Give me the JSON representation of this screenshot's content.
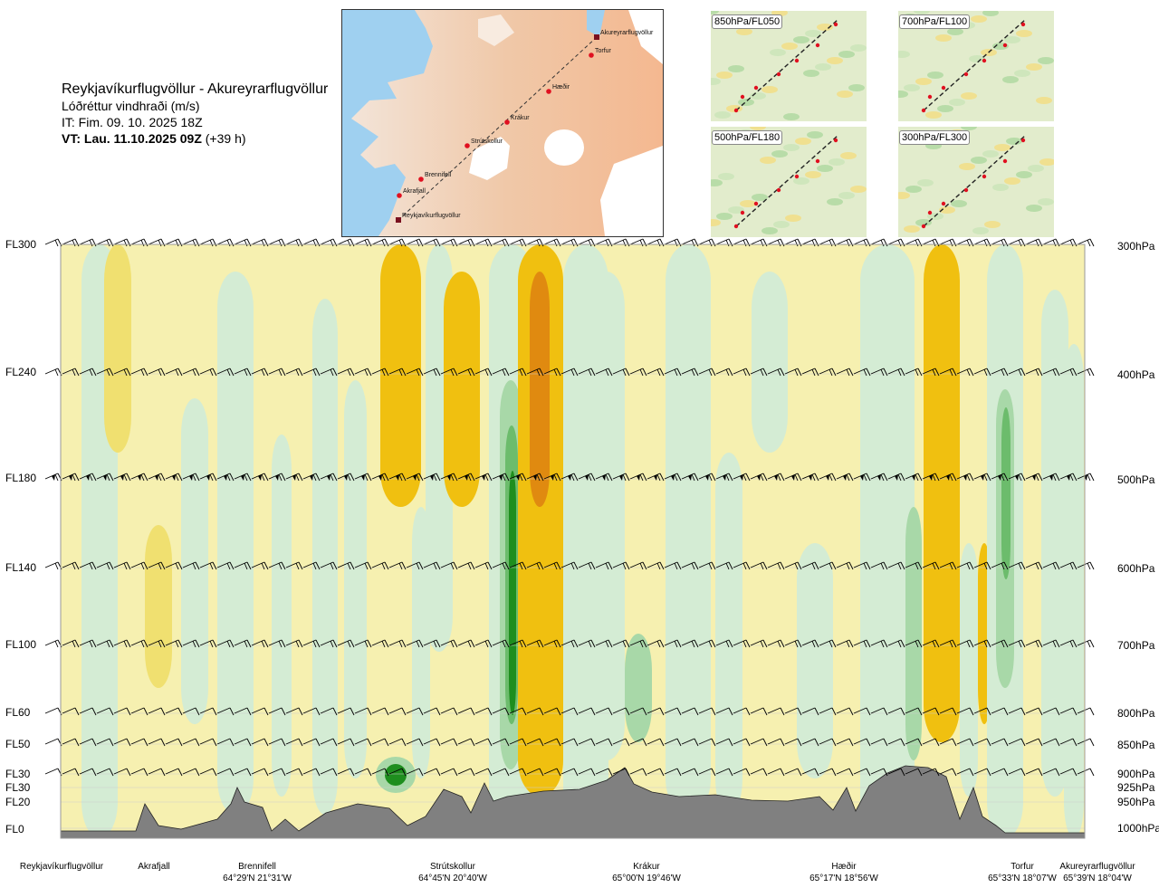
{
  "header": {
    "route": "Reykjavíkurflugvöllur - Akureyrarflugvöllur",
    "variable": "Lóðréttur vindhraði (m/s)",
    "init_time": "IT: Fim. 09. 10. 2025 18Z",
    "valid_prefix": "VT: Lau. 11.10.2025 09Z",
    "valid_suffix": " (+39 h)"
  },
  "map": {
    "waypoints": [
      "Reykjavíkurflugvöllur",
      "Akrafjall",
      "Brennifell",
      "Strútskollur",
      "Krákur",
      "Hæðir",
      "Torfur",
      "Akureyrarflugvöllur"
    ]
  },
  "thumbnails": [
    {
      "label": "850hPa/FL050"
    },
    {
      "label": "700hPa/FL100"
    },
    {
      "label": "500hPa/FL180"
    },
    {
      "label": "300hPa/FL300"
    }
  ],
  "chart_data": {
    "type": "heatmap",
    "title": "Reykjavíkurflugvöllur - Akureyrarflugvöllur",
    "variable": "Lóðréttur vindhraði (m/s)",
    "y_levels_left": [
      "FL300",
      "FL240",
      "FL180",
      "FL140",
      "FL100",
      "FL60",
      "FL50",
      "FL30",
      "FL30",
      "FL20",
      "FL0"
    ],
    "y_levels_right": [
      "300hPa",
      "400hPa",
      "500hPa",
      "600hPa",
      "700hPa",
      "800hPa",
      "850hPa",
      "900hPa",
      "925hPa",
      "950hPa",
      "1000hPa"
    ],
    "x_locations": [
      {
        "name": "Reykjavíkurflugvöllur",
        "coord": ""
      },
      {
        "name": "Akrafjall",
        "coord": ""
      },
      {
        "name": "Brennifell",
        "coord": "64°29'N 21°31'W"
      },
      {
        "name": "Strútskollur",
        "coord": "64°45'N 20°40'W"
      },
      {
        "name": "Krákur",
        "coord": "65°00'N 19°46'W"
      },
      {
        "name": "Hæðir",
        "coord": "65°17'N 18°56'W"
      },
      {
        "name": "Torfur",
        "coord": "65°33'N 18°07'W"
      },
      {
        "name": "Akureyrarflugvöllur",
        "coord": "65°39'N 18°04'W"
      }
    ],
    "colors": {
      "strong_down": "#e08a10",
      "moderate_down": "#f0c010",
      "weak_down": "#f0e070",
      "very_weak_down": "#f6f0b0",
      "near_zero": "#fafff0",
      "very_weak_up": "#d4ecd4",
      "weak_up": "#a8d8a8",
      "moderate_up": "#6cbc6c",
      "strong_up": "#1e8e1e",
      "terrain": "#808080"
    }
  }
}
